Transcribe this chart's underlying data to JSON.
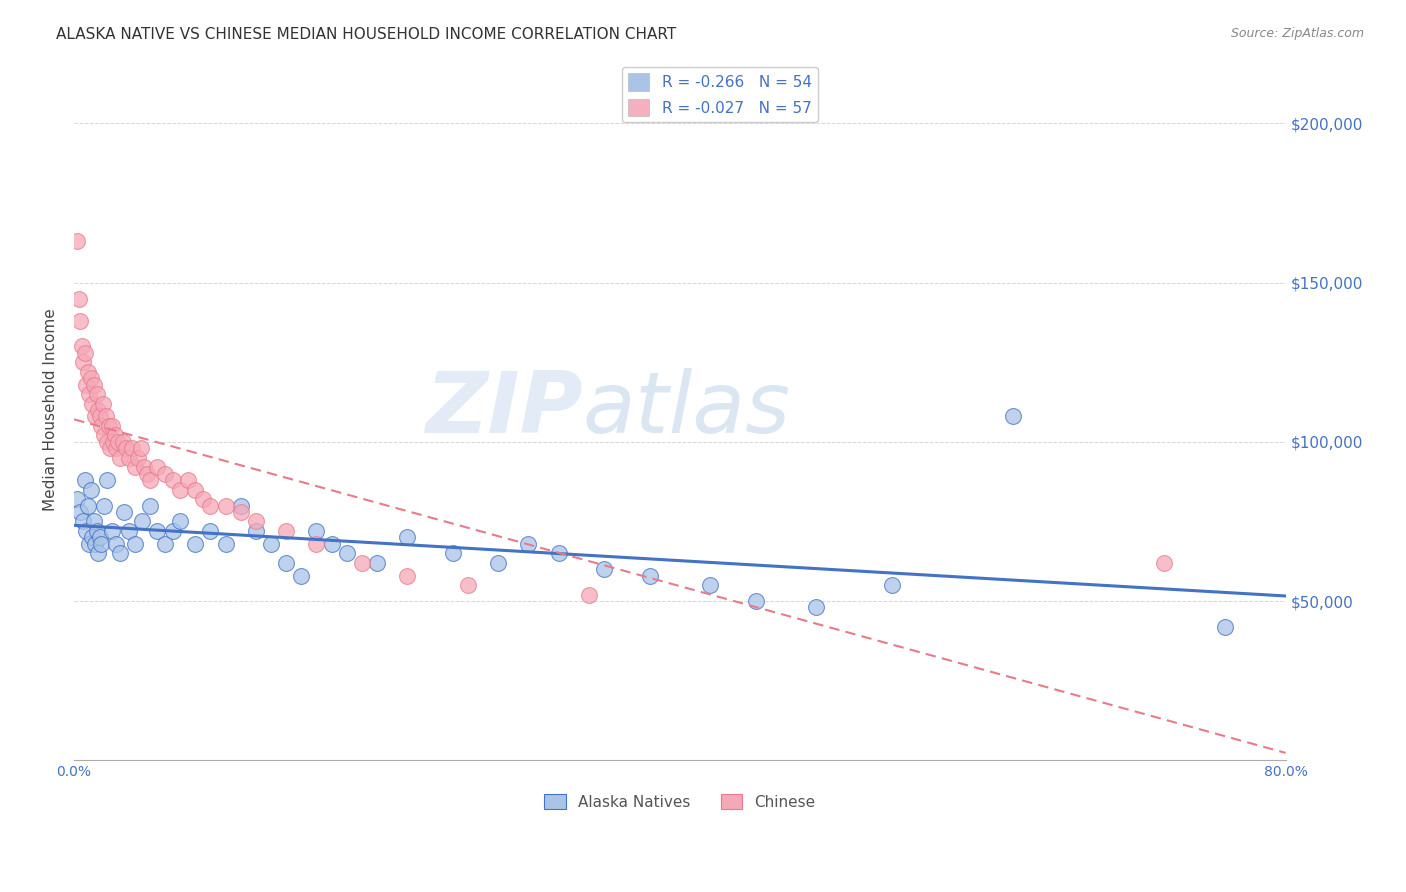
{
  "title": "ALASKA NATIVE VS CHINESE MEDIAN HOUSEHOLD INCOME CORRELATION CHART",
  "source": "Source: ZipAtlas.com",
  "ylabel": "Median Household Income",
  "xlim": [
    0.0,
    0.8
  ],
  "ylim": [
    0,
    220000
  ],
  "yticks": [
    0,
    50000,
    100000,
    150000,
    200000
  ],
  "ytick_labels": [
    "",
    "$50,000",
    "$100,000",
    "$150,000",
    "$200,000"
  ],
  "legend_entries": [
    {
      "label": "R = -0.266   N = 54",
      "color": "#aac4e8"
    },
    {
      "label": "R = -0.027   N = 57",
      "color": "#f5b0c0"
    }
  ],
  "alaska_x": [
    0.002,
    0.004,
    0.006,
    0.007,
    0.008,
    0.009,
    0.01,
    0.011,
    0.012,
    0.013,
    0.014,
    0.015,
    0.016,
    0.017,
    0.018,
    0.02,
    0.022,
    0.025,
    0.028,
    0.03,
    0.033,
    0.036,
    0.04,
    0.045,
    0.05,
    0.055,
    0.06,
    0.065,
    0.07,
    0.08,
    0.09,
    0.1,
    0.11,
    0.12,
    0.13,
    0.14,
    0.15,
    0.16,
    0.17,
    0.18,
    0.2,
    0.22,
    0.25,
    0.28,
    0.3,
    0.32,
    0.35,
    0.38,
    0.42,
    0.45,
    0.49,
    0.54,
    0.62,
    0.76
  ],
  "alaska_y": [
    82000,
    78000,
    75000,
    88000,
    72000,
    80000,
    68000,
    85000,
    70000,
    75000,
    68000,
    72000,
    65000,
    70000,
    68000,
    80000,
    88000,
    72000,
    68000,
    65000,
    78000,
    72000,
    68000,
    75000,
    80000,
    72000,
    68000,
    72000,
    75000,
    68000,
    72000,
    68000,
    80000,
    72000,
    68000,
    62000,
    58000,
    72000,
    68000,
    65000,
    62000,
    70000,
    65000,
    62000,
    68000,
    65000,
    60000,
    58000,
    55000,
    50000,
    48000,
    55000,
    108000,
    42000
  ],
  "chinese_x": [
    0.002,
    0.003,
    0.004,
    0.005,
    0.006,
    0.007,
    0.008,
    0.009,
    0.01,
    0.011,
    0.012,
    0.013,
    0.014,
    0.015,
    0.016,
    0.017,
    0.018,
    0.019,
    0.02,
    0.021,
    0.022,
    0.023,
    0.024,
    0.025,
    0.026,
    0.027,
    0.028,
    0.029,
    0.03,
    0.032,
    0.034,
    0.036,
    0.038,
    0.04,
    0.042,
    0.044,
    0.046,
    0.048,
    0.05,
    0.055,
    0.06,
    0.065,
    0.07,
    0.075,
    0.08,
    0.085,
    0.09,
    0.1,
    0.11,
    0.12,
    0.14,
    0.16,
    0.19,
    0.22,
    0.26,
    0.34,
    0.72
  ],
  "chinese_y": [
    163000,
    145000,
    138000,
    130000,
    125000,
    128000,
    118000,
    122000,
    115000,
    120000,
    112000,
    118000,
    108000,
    115000,
    110000,
    108000,
    105000,
    112000,
    102000,
    108000,
    100000,
    105000,
    98000,
    105000,
    100000,
    102000,
    98000,
    100000,
    95000,
    100000,
    98000,
    95000,
    98000,
    92000,
    95000,
    98000,
    92000,
    90000,
    88000,
    92000,
    90000,
    88000,
    85000,
    88000,
    85000,
    82000,
    80000,
    80000,
    78000,
    75000,
    72000,
    68000,
    62000,
    58000,
    55000,
    52000,
    62000
  ],
  "alaska_line_color": "#4472c4",
  "chinese_line_color": "#e87b8a",
  "dot_color_alaska": "#aac4e8",
  "dot_color_chinese": "#f5a8b8",
  "watermark_zip": "ZIP",
  "watermark_atlas": "atlas",
  "grid_color": "#cccccc",
  "title_fontsize": 11,
  "axis_label_color": "#4472c4",
  "background_color": "#ffffff"
}
